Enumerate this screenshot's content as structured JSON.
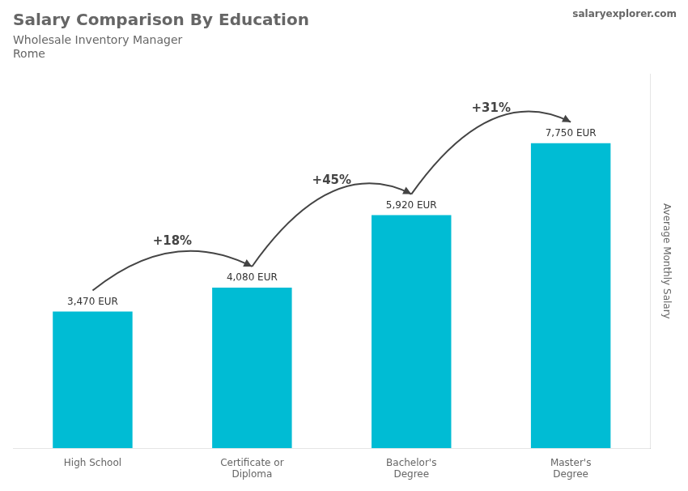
{
  "chart_data": {
    "type": "bar",
    "title": "Salary Comparison By Education",
    "subtitle": "Wholesale Inventory Manager",
    "city": "Rome",
    "watermark": "salaryexplorer.com",
    "ylabel": "Average Monthly Salary",
    "categories": [
      "High School",
      "Certificate or\nDiploma",
      "Bachelor's\nDegree",
      "Master's\nDegree"
    ],
    "values": [
      3470,
      4080,
      5920,
      7750
    ],
    "value_labels": [
      "3,470 EUR",
      "4,080 EUR",
      "5,920 EUR",
      "7,750 EUR"
    ],
    "data_labels": true,
    "color": "#00bcd4",
    "ylim": [
      0,
      9500
    ],
    "tick_labels": "x",
    "grid": false,
    "annotations": [
      "+18%",
      "+45%",
      "+31%"
    ]
  }
}
